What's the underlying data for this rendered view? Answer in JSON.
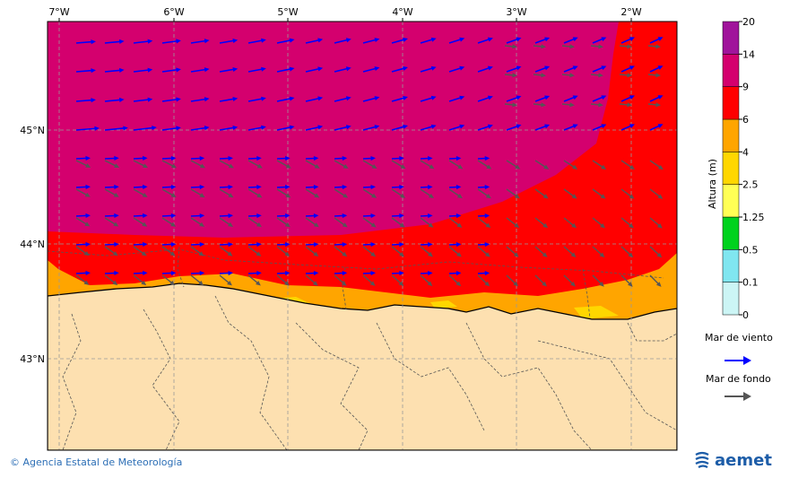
{
  "map": {
    "lon_labels": [
      "7°W",
      "6°W",
      "5°W",
      "4°W",
      "3°W",
      "2°W"
    ],
    "lat_labels": [
      "45°N",
      "44°N",
      "43°N"
    ]
  },
  "colorbar": {
    "title": "Altura (m)",
    "levels": [
      "0",
      "0.1",
      "0.5",
      "1.25",
      "2.5",
      "4",
      "6",
      "9",
      "14",
      "20"
    ],
    "colors": [
      "#ccf5f5",
      "#80e6f0",
      "#00d21e",
      "#ffff55",
      "#ffd700",
      "#ffa500",
      "#ff0000",
      "#d4006e",
      "#a0149b"
    ]
  },
  "legend": {
    "wind_sea": "Mar de viento",
    "swell": "Mar de fondo",
    "wind_color": "#0000ff",
    "swell_color": "#555555"
  },
  "footer": {
    "credit": "© Agencia Estatal de Meteorología",
    "logo_text": "aemet"
  },
  "colors": {
    "land": "#fde0b0",
    "magenta": "#d4006e",
    "red": "#ff0000",
    "orange": "#ffa500",
    "yellow": "#ffd700"
  }
}
